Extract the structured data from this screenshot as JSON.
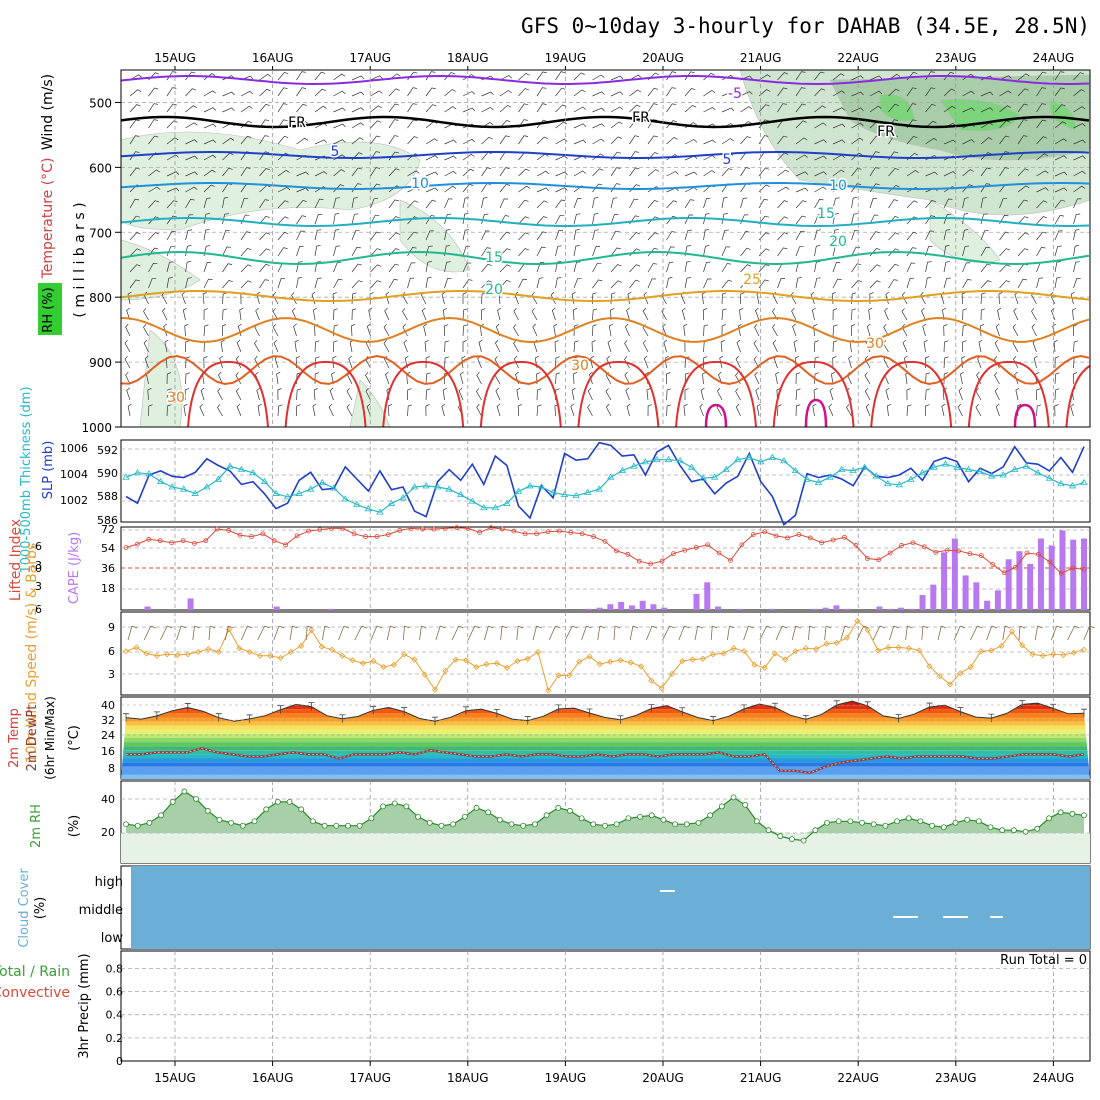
{
  "title": "GFS 0~10day 3-hourly for DAHAB (34.5E, 28.5N)",
  "dates": [
    "15AUG",
    "16AUG",
    "17AUG",
    "18AUG",
    "19AUG",
    "20AUG",
    "21AUG",
    "22AUG",
    "23AUG",
    "24AUG"
  ],
  "colors": {
    "sounding_bg": "#eef6ee",
    "frame": "#000000",
    "grid": "#aaaaaa",
    "slp": "#1f3fc8",
    "thickness": "#28b8c8",
    "lifted_index": "#d84a3a",
    "cape": "#b878f0",
    "wind_speed": "#e8a030",
    "wind_barb": "#8a6a4a",
    "rh": "#3aa03a",
    "cloud": "#6baed6"
  },
  "chart_data": [
    {
      "type": "contour",
      "panel": "upper-air",
      "ylabel_parts": {
        "wind": "Wind (m/s)",
        "temp": "Temperature (°C)",
        "rh": "RH (%)",
        "unit": "( m i l l i b a r s )"
      },
      "y_ticks": [
        "500",
        "600",
        "700",
        "800",
        "900",
        "1000"
      ],
      "ylim": [
        450,
        1000
      ],
      "isotherm_labels": [
        "-5",
        "FR",
        "FR",
        "FR",
        "5",
        "5",
        "10",
        "10",
        "15",
        "15",
        "20",
        "20",
        "25",
        "30",
        "30",
        "30"
      ],
      "rh_labels": [
        "30",
        "30",
        "30",
        "30",
        "30",
        "30"
      ]
    },
    {
      "type": "line",
      "panel": "slp-thickness",
      "ylabel_left": "1000-500mb Thickness (dm)",
      "ylabel_right": "SLP (mb)",
      "y_ticks_left": [
        "592",
        "590",
        "588",
        "586"
      ],
      "y_ticks_right": [
        "1006",
        "1004",
        "1002"
      ],
      "series": [
        {
          "name": "SLP (mb)",
          "values": [
            1002.4,
            1001.9,
            1004.0,
            1004.3,
            1003.9,
            1003.8,
            1004.2,
            1005.2,
            1004.7,
            1004.3,
            1003.3,
            1003.5,
            1002.6,
            1001.5,
            1001.9,
            1003.6,
            1004.2,
            1002.9,
            1003.0,
            1004.6,
            1003.7,
            1002.8,
            1004.3,
            1002.9,
            1003.1,
            1001.3,
            1000.9,
            1003.5,
            1004.4,
            1003.6,
            1004.8,
            1003.3,
            1005.4,
            1004.7,
            1001.7,
            1000.8,
            1003.2,
            1002.3,
            1005.6,
            1005.1,
            1005.2,
            1006.4,
            1006.2,
            1005.4,
            1005.5,
            1004.0,
            1005.7,
            1006.2,
            1004.7,
            1003.5,
            1003.7,
            1002.6,
            1003.4,
            1003.9,
            1005.6,
            1003.5,
            1002.4,
            1000.3,
            1001.0,
            1004.1,
            1003.8,
            1004.0,
            1003.7,
            1003.2,
            1004.6,
            1003.9,
            1003.8,
            1004.0,
            1004.5,
            1003.6,
            1005.0,
            1005.3,
            1005.0,
            1003.5,
            1004.5,
            1004.1,
            1004.6,
            1006.1,
            1004.9,
            1004.8,
            1004.3,
            1005.3,
            1004.2,
            1006.1
          ]
        },
        {
          "name": "Thickness (dm)",
          "values": [
            589.6,
            590.0,
            589.9,
            589.2,
            588.7,
            588.5,
            588.1,
            588.7,
            589.4,
            590.6,
            590.3,
            590.0,
            589.2,
            588.1,
            587.8,
            588.1,
            588.5,
            589.1,
            588.6,
            587.6,
            587.1,
            586.7,
            586.4,
            587.2,
            587.7,
            588.7,
            588.8,
            588.7,
            588.5,
            588.0,
            587.4,
            586.8,
            586.8,
            587.2,
            588.3,
            588.8,
            588.7,
            588.2,
            588.0,
            587.9,
            588.2,
            588.5,
            589.6,
            590.2,
            590.6,
            591.0,
            591.2,
            591.2,
            591.1,
            590.5,
            589.5,
            589.6,
            590.3,
            591.2,
            591.4,
            591.0,
            591.4,
            591.1,
            590.2,
            589.4,
            589.1,
            589.6,
            590.3,
            590.2,
            590.5,
            589.7,
            589.0,
            588.9,
            589.4,
            590.0,
            590.5,
            590.8,
            590.5,
            590.3,
            590.1,
            589.7,
            589.8,
            590.3,
            590.6,
            590.0,
            589.5,
            589.0,
            588.8,
            589.1
          ]
        }
      ]
    },
    {
      "type": "bar+line",
      "panel": "cape-li",
      "ylabel_left": "Lifted Index",
      "ylabel_right": "CAPE (J/kg)",
      "y_ticks_left": [
        "-6",
        "-3",
        "0",
        "3",
        "6"
      ],
      "y_ticks_right": [
        "72",
        "54",
        "36",
        "18"
      ],
      "series": [
        {
          "name": "CAPE (J/kg)",
          "values": [
            0,
            0,
            3,
            0,
            0,
            0,
            10,
            0,
            0,
            0,
            0,
            0,
            0,
            0,
            3,
            0,
            0,
            0,
            0,
            1,
            0,
            0,
            0,
            0,
            0,
            0,
            0,
            0,
            0,
            0,
            0,
            0,
            0,
            0,
            0,
            0,
            0,
            0,
            0,
            0,
            0,
            0,
            0,
            1,
            2,
            5,
            7,
            4,
            8,
            5,
            2,
            0,
            0,
            14,
            24,
            3,
            0,
            1,
            0,
            0,
            1,
            0,
            0,
            0,
            1,
            2,
            4,
            1,
            0,
            0,
            3,
            1,
            2,
            1,
            13,
            22,
            50,
            62,
            30,
            24,
            8,
            17,
            44,
            51,
            40,
            62,
            56,
            69,
            61,
            62
          ]
        },
        {
          "name": "Lifted Index",
          "values": [
            3.0,
            3.5,
            4.2,
            4.0,
            3.7,
            4.0,
            3.6,
            4.0,
            5.7,
            5.5,
            4.8,
            4.6,
            5.0,
            4.0,
            3.4,
            4.7,
            5.4,
            5.6,
            5.8,
            5.8,
            5.0,
            4.6,
            4.6,
            4.9,
            5.5,
            5.8,
            5.7,
            5.7,
            5.8,
            5.9,
            5.8,
            5.2,
            5.9,
            5.7,
            5.4,
            5.0,
            5.0,
            5.3,
            5.4,
            5.2,
            5.0,
            4.6,
            3.9,
            2.5,
            2.0,
            1.0,
            0.6,
            1.0,
            2.1,
            2.6,
            3.0,
            3.4,
            2.2,
            1.1,
            3.4,
            4.9,
            5.3,
            4.7,
            4.4,
            4.9,
            4.4,
            3.7,
            4.1,
            4.5,
            3.3,
            1.4,
            1.2,
            2.2,
            3.3,
            3.7,
            3.1,
            2.3,
            2.6,
            2.5,
            2.1,
            1.8,
            0.5,
            -0.7,
            0.1,
            2.2,
            2.0,
            0.9,
            -0.8,
            0.0,
            -0.2
          ]
        }
      ]
    },
    {
      "type": "line",
      "panel": "wind10",
      "ylabel": "10m Wind Speed (m/s) & Barbs",
      "y_ticks": [
        "9",
        "6",
        "3"
      ],
      "series": [
        {
          "name": "10m Wind Speed",
          "values": [
            5.8,
            6.3,
            5.5,
            5.2,
            5.4,
            5.3,
            5.4,
            5.7,
            6.1,
            5.7,
            8.7,
            6.2,
            5.7,
            5.2,
            5.2,
            4.9,
            5.7,
            6.5,
            8.6,
            6.4,
            6.0,
            5.2,
            4.6,
            4.2,
            4.5,
            3.7,
            4.0,
            5.4,
            4.7,
            2.7,
            0.7,
            3.2,
            4.7,
            4.6,
            3.7,
            4.1,
            4.2,
            3.6,
            4.5,
            4.8,
            5.7,
            0.6,
            2.6,
            2.6,
            4.4,
            5.1,
            4.1,
            4.4,
            4.6,
            4.3,
            3.8,
            1.9,
            0.9,
            2.8,
            4.5,
            4.7,
            4.8,
            5.4,
            5.5,
            6.2,
            5.8,
            4.0,
            3.6,
            5.5,
            4.7,
            5.8,
            6.2,
            6.1,
            6.8,
            6.9,
            7.6,
            9.8,
            8.6,
            5.9,
            6.3,
            6.3,
            6.2,
            5.9,
            3.8,
            2.5,
            1.4,
            2.9,
            3.7,
            5.8,
            5.9,
            6.5,
            8.4,
            6.6,
            5.4,
            5.2,
            5.4,
            5.3,
            5.6,
            6.0
          ]
        }
      ]
    },
    {
      "type": "area",
      "panel": "temp2m",
      "ylabel": "2m Temp 2m DewPt (6hr Min/Max) (°C)",
      "y_ticks": [
        "40",
        "32",
        "24",
        "16",
        "8"
      ],
      "series": [
        {
          "name": "2m Temp",
          "values": [
            31.9,
            31.2,
            32.8,
            35.3,
            36.9,
            35.0,
            31.9,
            30.2,
            31.3,
            32.9,
            35.8,
            38.4,
            37.3,
            32.9,
            31.4,
            32.5,
            35.5,
            36.9,
            34.9,
            31.5,
            30.2,
            32.1,
            35.3,
            36.1,
            34.0,
            31.2,
            30.5,
            32.6,
            36.2,
            36.6,
            34.2,
            32.0,
            30.9,
            33.0,
            36.4,
            37.8,
            34.8,
            32.0,
            30.5,
            32.6,
            36.2,
            38.6,
            37.0,
            33.1,
            31.1,
            33.4,
            38.2,
            40.0,
            37.7,
            32.8,
            31.5,
            33.6,
            37.1,
            38.0,
            34.9,
            32.2,
            31.7,
            34.0,
            38.4,
            39.0,
            36.5,
            33.8,
            34.1
          ]
        },
        {
          "name": "2m DewPt",
          "values": [
            14,
            14,
            15,
            15,
            15,
            17,
            15,
            14,
            13,
            13,
            14,
            15,
            14,
            14,
            12,
            14,
            14,
            14,
            15,
            14,
            16,
            15,
            14,
            13,
            13,
            14,
            13,
            14,
            14,
            13,
            13,
            14,
            13,
            14,
            14,
            13,
            14,
            14,
            14,
            15,
            13,
            13,
            14,
            6,
            6,
            5,
            8,
            10,
            11,
            12,
            13,
            12,
            13,
            13,
            13,
            13,
            12,
            12,
            13,
            14,
            14,
            14,
            13,
            14
          ]
        }
      ]
    },
    {
      "type": "area",
      "panel": "rh2m",
      "ylabel": "2m RH (%)",
      "y_ticks": [
        "40",
        "20"
      ],
      "series": [
        {
          "name": "2m RH",
          "values": [
            26,
            25,
            27,
            32,
            41,
            48,
            43,
            35,
            29,
            27,
            25,
            28,
            36,
            41,
            41,
            36,
            28,
            25,
            25,
            25,
            25,
            30,
            38,
            40,
            38,
            31,
            27,
            25,
            26,
            31,
            37,
            34,
            29,
            26,
            25,
            26,
            32,
            37,
            35,
            30,
            26,
            25,
            26,
            30,
            31,
            32,
            29,
            26,
            26,
            27,
            32,
            38,
            44,
            39,
            28,
            22,
            18,
            16,
            15,
            22,
            27,
            28,
            28,
            27,
            26,
            25,
            28,
            30,
            28,
            25,
            24,
            27,
            29,
            28,
            24,
            22,
            22,
            21,
            23,
            30,
            34,
            33,
            32
          ]
        }
      ]
    },
    {
      "type": "heatmap",
      "panel": "cloud",
      "ylabel": "Cloud Cover (%)",
      "y_ticks": [
        "high",
        "middle",
        "low"
      ]
    },
    {
      "type": "bar",
      "panel": "precip",
      "ylabel": "3hr Precip (mm)",
      "legend": [
        "Total / Rain",
        "Convective"
      ],
      "y_ticks": [
        "0.8",
        "0.6",
        "0.4",
        "0.2",
        "0"
      ],
      "run_total": "Run Total = 0"
    }
  ]
}
